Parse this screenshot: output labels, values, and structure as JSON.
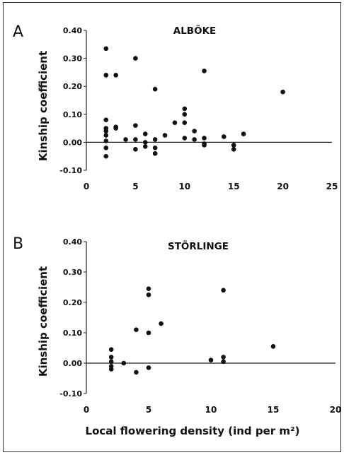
{
  "chart_data": [
    {
      "type": "scatter",
      "panel_letter": "A",
      "title": "ALBÖKE",
      "ylabel": "Kinship coefficient",
      "xlabel": "",
      "xlim": [
        0,
        25
      ],
      "ylim": [
        -0.1,
        0.4
      ],
      "x_ticks": [
        "0",
        "5",
        "10",
        "15",
        "20",
        "25"
      ],
      "y_ticks": [
        "-0.10",
        "0.00",
        "0.10",
        "0.20",
        "0.30",
        "0.40"
      ],
      "points": [
        [
          2,
          0.335
        ],
        [
          2,
          0.24
        ],
        [
          2,
          0.08
        ],
        [
          2,
          0.05
        ],
        [
          2,
          0.04
        ],
        [
          2,
          0.025
        ],
        [
          2,
          0.005
        ],
        [
          2,
          -0.02
        ],
        [
          2,
          -0.05
        ],
        [
          3,
          0.24
        ],
        [
          3,
          0.055
        ],
        [
          3,
          0.05
        ],
        [
          4,
          0.01
        ],
        [
          5,
          0.3
        ],
        [
          5,
          0.06
        ],
        [
          5,
          0.01
        ],
        [
          5,
          -0.025
        ],
        [
          6,
          0.03
        ],
        [
          6,
          0.0
        ],
        [
          6,
          -0.015
        ],
        [
          7,
          0.19
        ],
        [
          7,
          0.01
        ],
        [
          7,
          -0.02
        ],
        [
          7,
          -0.04
        ],
        [
          8,
          0.025
        ],
        [
          9,
          0.07
        ],
        [
          10,
          0.12
        ],
        [
          10,
          0.1
        ],
        [
          10,
          0.07
        ],
        [
          10,
          0.015
        ],
        [
          11,
          0.04
        ],
        [
          11,
          0.01
        ],
        [
          12,
          0.255
        ],
        [
          12,
          0.015
        ],
        [
          12,
          -0.005
        ],
        [
          12,
          -0.01
        ],
        [
          14,
          0.02
        ],
        [
          15,
          -0.01
        ],
        [
          15,
          -0.025
        ],
        [
          16,
          0.03
        ],
        [
          20,
          0.18
        ]
      ]
    },
    {
      "type": "scatter",
      "panel_letter": "B",
      "title": "STÖRLINGE",
      "ylabel": "Kinship coefficient",
      "xlabel": "Local flowering density (ind per m²)",
      "xlim": [
        0,
        20
      ],
      "ylim": [
        -0.1,
        0.4
      ],
      "x_ticks": [
        "0",
        "5",
        "10",
        "15",
        "20"
      ],
      "y_ticks": [
        "-0.10",
        "0.00",
        "0.10",
        "0.20",
        "0.30",
        "0.40"
      ],
      "points": [
        [
          2,
          0.045
        ],
        [
          2,
          0.02
        ],
        [
          2,
          0.005
        ],
        [
          2,
          -0.01
        ],
        [
          2,
          -0.02
        ],
        [
          3,
          0.0
        ],
        [
          4,
          0.11
        ],
        [
          4,
          -0.03
        ],
        [
          5,
          0.245
        ],
        [
          5,
          0.225
        ],
        [
          5,
          0.1
        ],
        [
          5,
          -0.015
        ],
        [
          6,
          0.13
        ],
        [
          10,
          0.01
        ],
        [
          11,
          0.24
        ],
        [
          11,
          0.02
        ],
        [
          11,
          0.005
        ],
        [
          15,
          0.055
        ]
      ]
    }
  ]
}
